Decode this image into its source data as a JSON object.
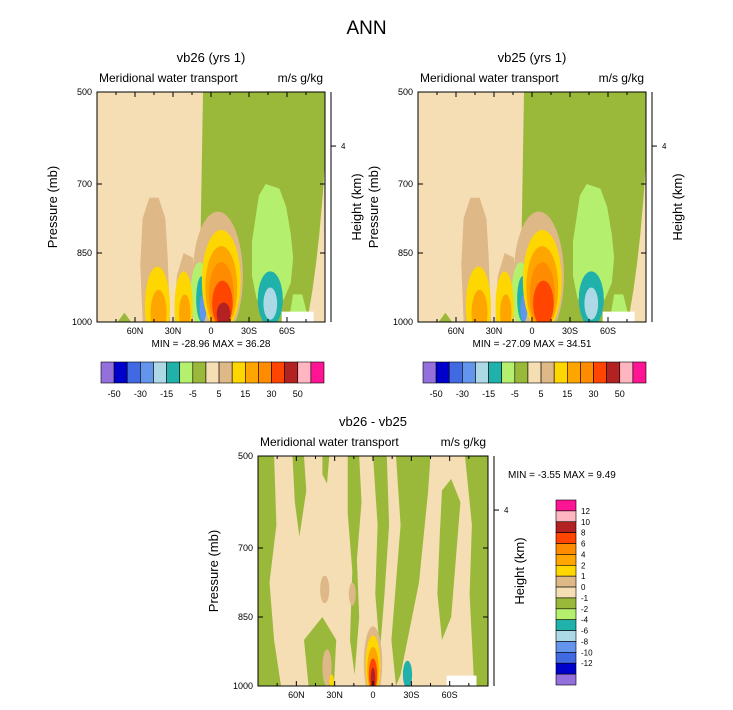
{
  "figure_title": "ANN",
  "chart_data": [
    {
      "type": "heatmap",
      "panel": "top-left",
      "title": "vb26 (yrs 1)",
      "left_subtitle": "Meridional water transport",
      "right_subtitle": "m/s g/kg",
      "ylabel": "Pressure (mb)",
      "right_axis_label": "Height (km)",
      "y_ticks": [
        "500",
        "700",
        "850",
        "1000"
      ],
      "right_ticks": [
        "4"
      ],
      "x_ticks": [
        "60N",
        "30N",
        "0",
        "30S",
        "60S"
      ],
      "stats": "MIN = -28.96  MAX = 36.28",
      "min": -28.96,
      "max": 36.28,
      "colorbar_labels": [
        "-50",
        "-30",
        "-15",
        "-5",
        "5",
        "15",
        "30",
        "50"
      ],
      "colorbar_colors": [
        "#9370db",
        "#0000cd",
        "#4169e1",
        "#6495ed",
        "#add8e6",
        "#20b2aa",
        "#b4f06e",
        "#9ab93a",
        "#f5deb3",
        "#deb887",
        "#ffd700",
        "#ffa500",
        "#ff8c00",
        "#ff4500",
        "#b22222",
        "#ffb6c1",
        "#ff1493"
      ]
    },
    {
      "type": "heatmap",
      "panel": "top-right",
      "title": "vb25 (yrs 1)",
      "left_subtitle": "Meridional water transport",
      "right_subtitle": "m/s g/kg",
      "ylabel": "Pressure (mb)",
      "right_axis_label": "Height (km)",
      "y_ticks": [
        "500",
        "700",
        "850",
        "1000"
      ],
      "right_ticks": [
        "4"
      ],
      "x_ticks": [
        "60N",
        "30N",
        "0",
        "30S",
        "60S"
      ],
      "stats": "MIN = -27.09  MAX =  34.51",
      "min": -27.09,
      "max": 34.51,
      "colorbar_labels": [
        "-50",
        "-30",
        "-15",
        "-5",
        "5",
        "15",
        "30",
        "50"
      ],
      "colorbar_colors": [
        "#9370db",
        "#0000cd",
        "#4169e1",
        "#6495ed",
        "#add8e6",
        "#20b2aa",
        "#b4f06e",
        "#9ab93a",
        "#f5deb3",
        "#deb887",
        "#ffd700",
        "#ffa500",
        "#ff8c00",
        "#ff4500",
        "#b22222",
        "#ffb6c1",
        "#ff1493"
      ]
    },
    {
      "type": "heatmap",
      "panel": "bottom",
      "title": "vb26 - vb25",
      "left_subtitle": "Meridional water transport",
      "right_subtitle": "m/s g/kg",
      "ylabel": "Pressure (mb)",
      "right_axis_label": "Height (km)",
      "y_ticks": [
        "500",
        "700",
        "850",
        "1000"
      ],
      "right_ticks": [
        "4"
      ],
      "x_ticks": [
        "60N",
        "30N",
        "0",
        "30S",
        "60S"
      ],
      "stats": "MIN =  -3.55  MAX =   9.49",
      "min": -3.55,
      "max": 9.49,
      "colorbar_labels": [
        "12",
        "10",
        "8",
        "6",
        "4",
        "2",
        "1",
        "0",
        "-1",
        "-2",
        "-4",
        "-6",
        "-8",
        "-10",
        "-12"
      ],
      "colorbar_colors": [
        "#ff1493",
        "#ffb6c1",
        "#b22222",
        "#ff4500",
        "#ff8c00",
        "#ffa500",
        "#ffd700",
        "#deb887",
        "#f5deb3",
        "#9ab93a",
        "#b4f06e",
        "#20b2aa",
        "#add8e6",
        "#6495ed",
        "#4169e1",
        "#0000cd",
        "#9370db"
      ]
    }
  ],
  "colors": {
    "tan": "#f5deb3",
    "green": "#9ab93a",
    "light_green": "#b4f06e",
    "brown": "#deb887",
    "yellow": "#ffd700",
    "orange": "#ffa500",
    "dark_orange": "#ff8c00",
    "red_orange": "#ff4500",
    "dark_red": "#b22222",
    "teal": "#20b2aa",
    "light_blue": "#add8e6",
    "blue": "#6495ed",
    "royal_blue": "#4169e1"
  }
}
